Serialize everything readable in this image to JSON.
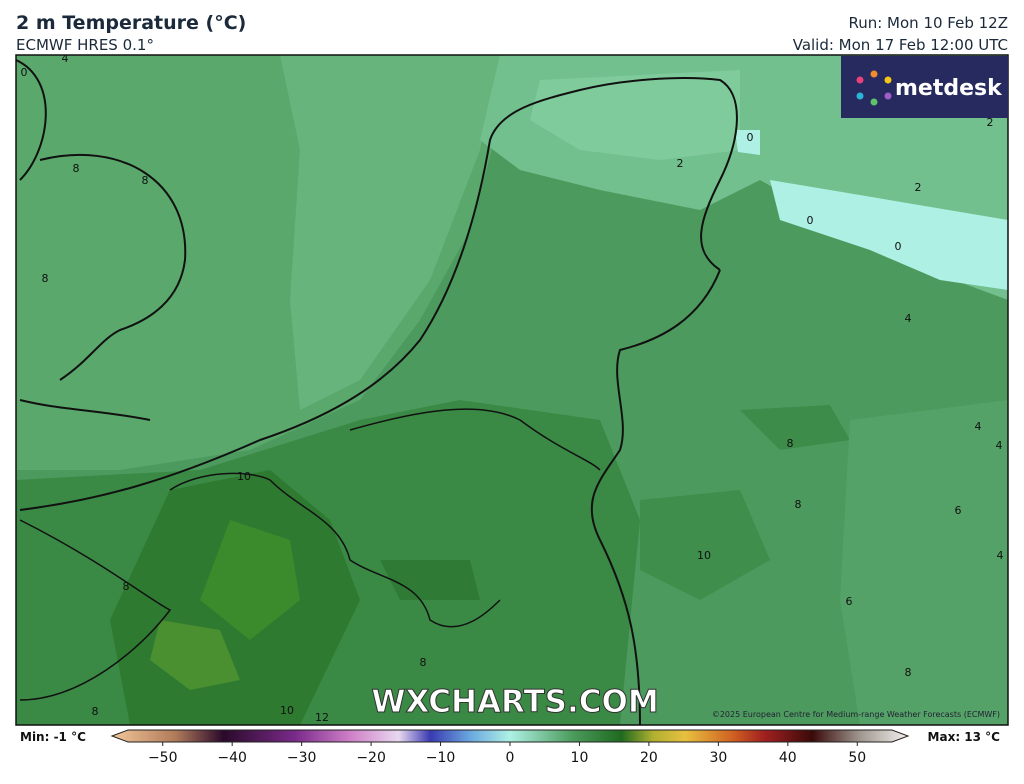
{
  "header": {
    "title": "2 m Temperature (°C)",
    "subtitle": "ECMWF HRES 0.1°",
    "run": "Run: Mon 10 Feb 12Z",
    "valid": "Valid: Mon 17 Feb 12:00 UTC"
  },
  "logo": "metdesk",
  "watermark": "WXCHARTS.COM",
  "copyright": "©2025 European Centre for Medium-range Weather Forecasts (ECMWF)",
  "map": {
    "contour_labels": [
      "4",
      "0",
      "8",
      "8",
      "8",
      "2",
      "0",
      "2",
      "0",
      "0",
      "2",
      "4",
      "8",
      "4",
      "4",
      "10",
      "8",
      "6",
      "10",
      "4",
      "8",
      "6",
      "8",
      "8",
      "8",
      "10",
      "12"
    ]
  },
  "colorbar": {
    "min_label": "Min: -1 °C",
    "max_label": "Max: 13 °C",
    "range": [
      -55,
      55
    ],
    "ticks": [
      {
        "value": -50,
        "label": "−50"
      },
      {
        "value": -40,
        "label": "−40"
      },
      {
        "value": -30,
        "label": "−30"
      },
      {
        "value": -20,
        "label": "−20"
      },
      {
        "value": -10,
        "label": "−10"
      },
      0,
      10,
      20,
      30,
      40,
      50
    ]
  }
}
